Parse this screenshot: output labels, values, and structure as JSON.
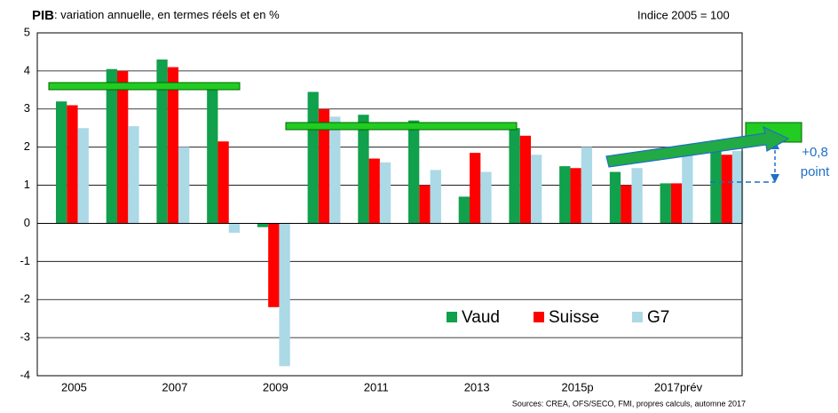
{
  "chart_data": {
    "type": "bar",
    "title": "PIB",
    "subtitle": ": variation  annuelle,  en termes réels et en %",
    "annotations": [
      "Indice 2005 = 100",
      "+0,8",
      "point",
      "Sources: CREA, OFS/SECO, FMI, propres calculs, automne 2017"
    ],
    "categories": [
      "2005",
      null,
      "2007",
      null,
      "2009",
      null,
      "2011",
      null,
      "2013",
      null,
      "2015p",
      null,
      "2017prév",
      null
    ],
    "series": [
      {
        "name": "Vaud",
        "color": "#11a04b",
        "values": [
          3.2,
          4.05,
          4.3,
          3.55,
          -0.1,
          3.45,
          2.85,
          2.7,
          0.7,
          2.5,
          1.5,
          1.35,
          1.05,
          1.9
        ]
      },
      {
        "name": "Suisse",
        "color": "#ff0000",
        "values": [
          3.1,
          4.0,
          4.1,
          2.15,
          -2.2,
          3.0,
          1.7,
          1.0,
          1.85,
          2.3,
          1.45,
          1.0,
          1.05,
          1.8
        ]
      },
      {
        "name": "G7",
        "color": "#acd9e6",
        "values": [
          2.5,
          2.55,
          2.0,
          -0.25,
          -3.75,
          2.8,
          1.6,
          1.4,
          1.35,
          1.8,
          2.0,
          1.45,
          1.9,
          1.9
        ]
      }
    ],
    "ylim": [
      -4,
      5
    ],
    "yticks": [
      -4,
      -3,
      -2,
      -1,
      0,
      1,
      2,
      3,
      4,
      5
    ],
    "grid": true
  }
}
